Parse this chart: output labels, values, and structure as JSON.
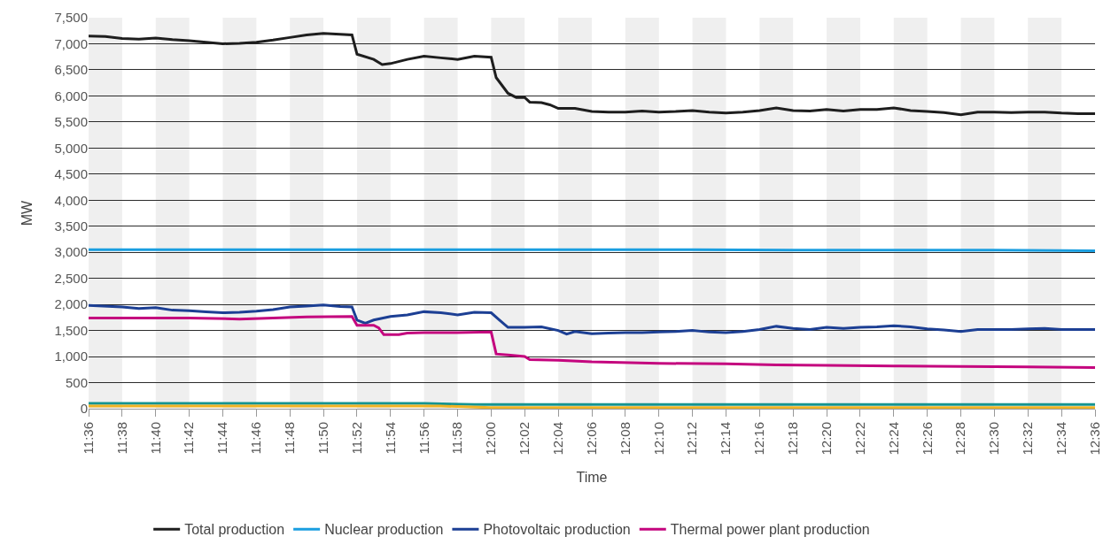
{
  "chart_data": {
    "type": "line",
    "xlabel": "Time",
    "ylabel": "MW",
    "xlim": [
      11.6,
      12.6
    ],
    "xticks": [
      {
        "value": 11.6,
        "label": "11:36"
      },
      {
        "value": 11.6333,
        "label": "11:38"
      },
      {
        "value": 11.6667,
        "label": "11:40"
      },
      {
        "value": 11.7,
        "label": "11:42"
      },
      {
        "value": 11.7333,
        "label": "11:44"
      },
      {
        "value": 11.7667,
        "label": "11:46"
      },
      {
        "value": 11.8,
        "label": "11:48"
      },
      {
        "value": 11.8333,
        "label": "11:50"
      },
      {
        "value": 11.8667,
        "label": "11:52"
      },
      {
        "value": 11.9,
        "label": "11:54"
      },
      {
        "value": 11.9333,
        "label": "11:56"
      },
      {
        "value": 11.9667,
        "label": "11:58"
      },
      {
        "value": 12.0,
        "label": "12:00"
      },
      {
        "value": 12.0333,
        "label": "12:02"
      },
      {
        "value": 12.0667,
        "label": "12:04"
      },
      {
        "value": 12.1,
        "label": "12:06"
      },
      {
        "value": 12.1333,
        "label": "12:08"
      },
      {
        "value": 12.1667,
        "label": "12:10"
      },
      {
        "value": 12.2,
        "label": "12:12"
      },
      {
        "value": 12.2333,
        "label": "12:14"
      },
      {
        "value": 12.2667,
        "label": "12:16"
      },
      {
        "value": 12.3,
        "label": "12:18"
      },
      {
        "value": 12.3333,
        "label": "12:20"
      },
      {
        "value": 12.3667,
        "label": "12:22"
      },
      {
        "value": 12.4,
        "label": "12:24"
      },
      {
        "value": 12.4333,
        "label": "12:26"
      },
      {
        "value": 12.4667,
        "label": "12:28"
      },
      {
        "value": 12.5,
        "label": "12:30"
      },
      {
        "value": 12.5333,
        "label": "12:32"
      },
      {
        "value": 12.5667,
        "label": "12:34"
      },
      {
        "value": 12.6,
        "label": "12:36"
      }
    ],
    "ylim": [
      0,
      7500
    ],
    "yticks": [
      {
        "value": 0,
        "label": "0"
      },
      {
        "value": 500,
        "label": "500"
      },
      {
        "value": 1000,
        "label": "1,000"
      },
      {
        "value": 1500,
        "label": "1,500"
      },
      {
        "value": 2000,
        "label": "2,000"
      },
      {
        "value": 2500,
        "label": "2,500"
      },
      {
        "value": 3000,
        "label": "3,000"
      },
      {
        "value": 3500,
        "label": "3,500"
      },
      {
        "value": 4000,
        "label": "4,000"
      },
      {
        "value": 4500,
        "label": "4,500"
      },
      {
        "value": 5000,
        "label": "5,000"
      },
      {
        "value": 5500,
        "label": "5,500"
      },
      {
        "value": 6000,
        "label": "6,000"
      },
      {
        "value": 6500,
        "label": "6,500"
      },
      {
        "value": 7000,
        "label": "7,000"
      },
      {
        "value": 7500,
        "label": "7,500"
      }
    ],
    "grid": "y",
    "legend": "bottom",
    "marker": "none",
    "line_style": "solid",
    "bands": [
      {
        "axis": "x",
        "from": 11.6,
        "to": 11.6333,
        "color": "#efefef"
      },
      {
        "axis": "x",
        "from": 11.6667,
        "to": 11.7,
        "color": "#efefef"
      },
      {
        "axis": "x",
        "from": 11.7333,
        "to": 11.7667,
        "color": "#efefef"
      },
      {
        "axis": "x",
        "from": 11.8,
        "to": 11.8333,
        "color": "#efefef"
      },
      {
        "axis": "x",
        "from": 11.8667,
        "to": 11.9,
        "color": "#efefef"
      },
      {
        "axis": "x",
        "from": 11.9333,
        "to": 11.9667,
        "color": "#efefef"
      },
      {
        "axis": "x",
        "from": 12.0,
        "to": 12.0333,
        "color": "#efefef"
      },
      {
        "axis": "x",
        "from": 12.0667,
        "to": 12.1,
        "color": "#efefef"
      },
      {
        "axis": "x",
        "from": 12.1333,
        "to": 12.1667,
        "color": "#efefef"
      },
      {
        "axis": "x",
        "from": 12.2,
        "to": 12.2333,
        "color": "#efefef"
      },
      {
        "axis": "x",
        "from": 12.2667,
        "to": 12.3,
        "color": "#efefef"
      },
      {
        "axis": "x",
        "from": 12.3333,
        "to": 12.3667,
        "color": "#efefef"
      },
      {
        "axis": "x",
        "from": 12.4,
        "to": 12.4333,
        "color": "#efefef"
      },
      {
        "axis": "x",
        "from": 12.4667,
        "to": 12.5,
        "color": "#efefef"
      },
      {
        "axis": "x",
        "from": 12.5333,
        "to": 12.5667,
        "color": "#efefef"
      }
    ],
    "series": [
      {
        "name": "Total production",
        "color": "#1e1e1e",
        "x": [
          11.6,
          11.6167,
          11.6333,
          11.65,
          11.6667,
          11.6833,
          11.7,
          11.7167,
          11.7333,
          11.75,
          11.7667,
          11.7833,
          11.8,
          11.8167,
          11.8333,
          11.85,
          11.8617,
          11.8667,
          11.8833,
          11.8917,
          11.9,
          11.9167,
          11.9333,
          11.95,
          11.9667,
          11.9833,
          12.0,
          12.005,
          12.0167,
          12.025,
          12.0333,
          12.0383,
          12.05,
          12.0583,
          12.0667,
          12.0833,
          12.1,
          12.1167,
          12.1333,
          12.15,
          12.1667,
          12.1833,
          12.2,
          12.2167,
          12.2333,
          12.25,
          12.2667,
          12.2833,
          12.3,
          12.3167,
          12.3333,
          12.35,
          12.3667,
          12.3833,
          12.4,
          12.4167,
          12.4333,
          12.45,
          12.4667,
          12.4833,
          12.5,
          12.5167,
          12.5333,
          12.55,
          12.5667,
          12.5833,
          12.6
        ],
        "values": [
          7150,
          7140,
          7100,
          7090,
          7110,
          7080,
          7060,
          7030,
          7000,
          7010,
          7030,
          7070,
          7120,
          7170,
          7200,
          7180,
          7170,
          6800,
          6700,
          6600,
          6620,
          6700,
          6760,
          6730,
          6700,
          6760,
          6740,
          6350,
          6050,
          5970,
          5970,
          5880,
          5870,
          5830,
          5760,
          5760,
          5700,
          5690,
          5690,
          5710,
          5690,
          5700,
          5720,
          5690,
          5670,
          5690,
          5720,
          5770,
          5720,
          5710,
          5740,
          5710,
          5740,
          5740,
          5770,
          5720,
          5700,
          5680,
          5640,
          5690,
          5690,
          5680,
          5690,
          5690,
          5670,
          5660,
          5660
        ]
      },
      {
        "name": "Nuclear production",
        "color": "#1a9ee0",
        "x": [
          11.6,
          11.7,
          11.8,
          11.9,
          12.0,
          12.1,
          12.2,
          12.3,
          12.4,
          12.5,
          12.6
        ],
        "values": [
          3050,
          3050,
          3050,
          3050,
          3050,
          3050,
          3050,
          3040,
          3040,
          3040,
          3030
        ]
      },
      {
        "name": "Photovoltaic production",
        "color": "#1c3f94",
        "x": [
          11.6,
          11.6333,
          11.65,
          11.6667,
          11.6833,
          11.7,
          11.7167,
          11.7333,
          11.75,
          11.7667,
          11.7833,
          11.8,
          11.8167,
          11.8333,
          11.85,
          11.8617,
          11.8667,
          11.875,
          11.8833,
          11.9,
          11.9167,
          11.9333,
          11.95,
          11.9667,
          11.9833,
          12.0,
          12.0083,
          12.0167,
          12.0333,
          12.05,
          12.0667,
          12.075,
          12.0833,
          12.1,
          12.1167,
          12.1333,
          12.15,
          12.1667,
          12.1833,
          12.2,
          12.2167,
          12.2333,
          12.25,
          12.2667,
          12.2833,
          12.3,
          12.3167,
          12.3333,
          12.35,
          12.3667,
          12.3833,
          12.4,
          12.4167,
          12.4333,
          12.45,
          12.4667,
          12.4833,
          12.5,
          12.5167,
          12.5333,
          12.55,
          12.5667,
          12.6
        ],
        "values": [
          1980,
          1950,
          1920,
          1940,
          1890,
          1880,
          1860,
          1840,
          1850,
          1870,
          1900,
          1950,
          1970,
          1990,
          1960,
          1950,
          1700,
          1640,
          1700,
          1770,
          1800,
          1860,
          1840,
          1800,
          1850,
          1840,
          1700,
          1560,
          1560,
          1570,
          1500,
          1430,
          1480,
          1440,
          1450,
          1460,
          1460,
          1470,
          1480,
          1500,
          1470,
          1460,
          1480,
          1520,
          1580,
          1540,
          1520,
          1560,
          1540,
          1560,
          1570,
          1590,
          1570,
          1530,
          1510,
          1480,
          1520,
          1520,
          1520,
          1530,
          1540,
          1520,
          1520
        ]
      },
      {
        "name": "Thermal power plant production",
        "color": "#c4057e",
        "x": [
          11.6,
          11.7,
          11.75,
          11.7833,
          11.8167,
          11.8617,
          11.8667,
          11.8833,
          11.8883,
          11.8933,
          11.9083,
          11.9167,
          11.9333,
          11.9667,
          12.0,
          12.005,
          12.0167,
          12.0333,
          12.0383,
          12.0667,
          12.1,
          12.1667,
          12.2333,
          12.2833,
          12.3333,
          12.4,
          12.4667,
          12.5333,
          12.6
        ],
        "values": [
          1740,
          1740,
          1720,
          1740,
          1760,
          1770,
          1600,
          1600,
          1550,
          1420,
          1420,
          1450,
          1460,
          1460,
          1470,
          1050,
          1030,
          1000,
          940,
          930,
          900,
          870,
          860,
          840,
          830,
          820,
          810,
          800,
          790
        ]
      },
      {
        "color": "#149490",
        "x": [
          11.6,
          11.9333,
          11.9833,
          12.6
        ],
        "values": [
          100,
          100,
          80,
          80
        ]
      },
      {
        "color": "#f0b323",
        "x": [
          11.6,
          11.95,
          12.0,
          12.6
        ],
        "values": [
          50,
          50,
          20,
          20
        ]
      }
    ]
  }
}
